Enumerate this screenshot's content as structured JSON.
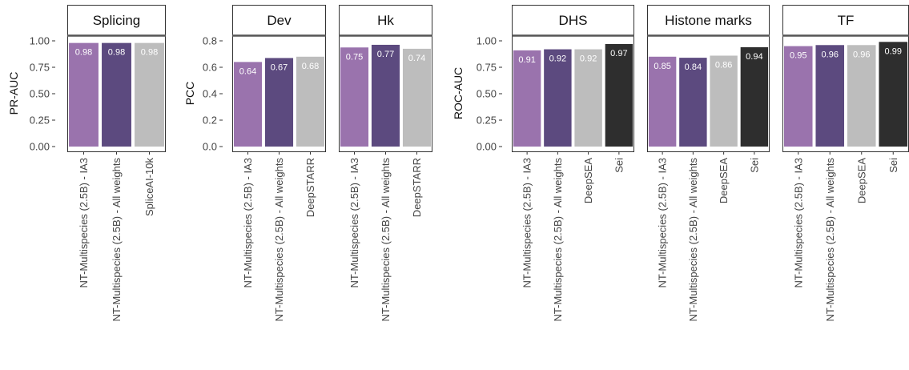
{
  "colors": {
    "light_purple": "#9a73ad",
    "dark_purple": "#5c4a7f",
    "gray": "#bdbdbd",
    "black": "#2e2e2e",
    "strip_bg": "#ffffff",
    "panel_border": "#333333",
    "strip_line": "#555555",
    "label_light": "#ffffff"
  },
  "chart_data": [
    {
      "type": "bar",
      "ylabel": "PR-AUC",
      "ylim": [
        0,
        1
      ],
      "yticks": [
        "0.00",
        "0.25",
        "0.50",
        "0.75",
        "1.00"
      ],
      "ytick_values": [
        0,
        0.25,
        0.5,
        0.75,
        1.0
      ],
      "facets": [
        {
          "title": "Splicing",
          "categories": [
            "NT-Multispecies (2.5B) - IA3",
            "NT-Multispecies (2.5B) - All weights",
            "SpliceAI-10k"
          ],
          "values": [
            0.98,
            0.98,
            0.98
          ],
          "labels": [
            "0.98",
            "0.98",
            "0.98"
          ],
          "colors": [
            "light_purple",
            "dark_purple",
            "gray"
          ]
        }
      ]
    },
    {
      "type": "bar",
      "ylabel": "PCC",
      "ylim": [
        0,
        0.8
      ],
      "yticks": [
        "0.0",
        "0.2",
        "0.4",
        "0.6",
        "0.8"
      ],
      "ytick_values": [
        0,
        0.2,
        0.4,
        0.6,
        0.8
      ],
      "facets": [
        {
          "title": "Dev",
          "categories": [
            "NT-Multispecies (2.5B) - IA3",
            "NT-Multispecies (2.5B) - All weights",
            "DeepSTARR"
          ],
          "values": [
            0.64,
            0.67,
            0.68
          ],
          "labels": [
            "0.64",
            "0.67",
            "0.68"
          ],
          "colors": [
            "light_purple",
            "dark_purple",
            "gray"
          ]
        },
        {
          "title": "Hk",
          "categories": [
            "NT-Multispecies (2.5B) - IA3",
            "NT-Multispecies (2.5B) - All weights",
            "DeepSTARR"
          ],
          "values": [
            0.75,
            0.77,
            0.74
          ],
          "labels": [
            "0.75",
            "0.77",
            "0.74"
          ],
          "colors": [
            "light_purple",
            "dark_purple",
            "gray"
          ]
        }
      ]
    },
    {
      "type": "bar",
      "ylabel": "ROC-AUC",
      "ylim": [
        0,
        1
      ],
      "yticks": [
        "0.00",
        "0.25",
        "0.50",
        "0.75",
        "1.00"
      ],
      "ytick_values": [
        0,
        0.25,
        0.5,
        0.75,
        1.0
      ],
      "facets": [
        {
          "title": "DHS",
          "categories": [
            "NT-Multispecies (2.5B) - IA3",
            "NT-Multispecies (2.5B) - All weights",
            "DeepSEA",
            "Sei"
          ],
          "values": [
            0.91,
            0.92,
            0.92,
            0.97
          ],
          "labels": [
            "0.91",
            "0.92",
            "0.92",
            "0.97"
          ],
          "colors": [
            "light_purple",
            "dark_purple",
            "gray",
            "black"
          ]
        },
        {
          "title": "Histone marks",
          "categories": [
            "NT-Multispecies (2.5B) - IA3",
            "NT-Multispecies (2.5B) - All weights",
            "DeepSEA",
            "Sei"
          ],
          "values": [
            0.85,
            0.84,
            0.86,
            0.94
          ],
          "labels": [
            "0.85",
            "0.84",
            "0.86",
            "0.94"
          ],
          "colors": [
            "light_purple",
            "dark_purple",
            "gray",
            "black"
          ]
        },
        {
          "title": "TF",
          "categories": [
            "NT-Multispecies (2.5B) - IA3",
            "NT-Multispecies (2.5B) - All weights",
            "DeepSEA",
            "Sei"
          ],
          "values": [
            0.95,
            0.96,
            0.96,
            0.99
          ],
          "labels": [
            "0.95",
            "0.96",
            "0.96",
            "0.99"
          ],
          "colors": [
            "light_purple",
            "dark_purple",
            "gray",
            "black"
          ]
        }
      ]
    }
  ]
}
